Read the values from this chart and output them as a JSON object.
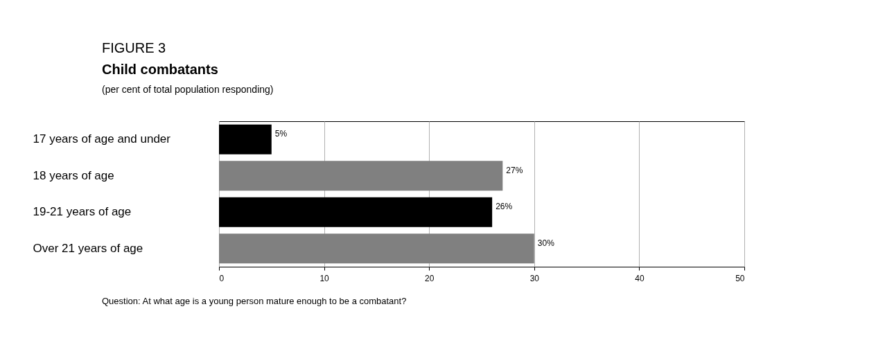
{
  "chart_data": {
    "type": "bar",
    "orientation": "horizontal",
    "title": "Child combatants",
    "subtitle": "(per cent of total population responding)",
    "annotations": [
      "FIGURE 3",
      "Question: At what age is a young person mature enough to be a combatant?"
    ],
    "categories": [
      "17 years of age and under",
      "18 years of age",
      "19-21 years of age",
      "Over 21 years of age"
    ],
    "values": [
      5,
      27,
      26,
      30
    ],
    "colors": [
      "#000000",
      "#808080",
      "#000000",
      "#808080"
    ],
    "value_labels": [
      "5%",
      "27%",
      "26%",
      "30%"
    ],
    "xlim": [
      0,
      50
    ],
    "xticks": [
      0,
      10,
      20,
      30,
      40,
      50
    ],
    "grid": "x"
  }
}
